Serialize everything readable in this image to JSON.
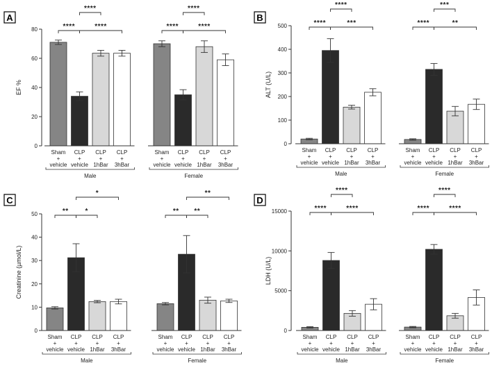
{
  "figure_title": "Multi-panel bar chart: EF, ALT, Creatinine and LDH by treatment group and sex",
  "colors": {
    "sham": "#858585",
    "clp_vehicle": "#2a2a2a",
    "clp_1bar": "#d8d8d8",
    "clp_3bar": "#ffffff",
    "outline": "#333333"
  },
  "chart_data": [
    {
      "panel": "A",
      "type": "bar",
      "ylabel": "EF %",
      "ylim": [
        0,
        80
      ],
      "yticks": [
        0,
        20,
        40,
        60,
        80
      ],
      "groups": [
        "Male",
        "Female"
      ],
      "categories": [
        {
          "top": "Sham",
          "mid": "+",
          "bottom": "vehicle"
        },
        {
          "top": "CLP",
          "mid": "+",
          "bottom": "vehicle"
        },
        {
          "top": "CLP",
          "mid": "+",
          "bottom": "1hBar"
        },
        {
          "top": "CLP",
          "mid": "+",
          "bottom": "3hBar"
        }
      ],
      "series": [
        {
          "name": "Male",
          "values": [
            71,
            34,
            63.5,
            63.5
          ],
          "errors": [
            1.5,
            3,
            2,
            2
          ]
        },
        {
          "name": "Female",
          "values": [
            70,
            35,
            68,
            59
          ],
          "errors": [
            2,
            3.5,
            4,
            4
          ]
        }
      ],
      "significance": [
        {
          "group": 0,
          "from": 0,
          "to": 1,
          "level": 1,
          "label": "****"
        },
        {
          "group": 0,
          "from": 1,
          "to": 2,
          "level": 2,
          "label": "****"
        },
        {
          "group": 0,
          "from": 1,
          "to": 3,
          "level": 1,
          "label": "****"
        },
        {
          "group": 1,
          "from": 0,
          "to": 1,
          "level": 1,
          "label": "****"
        },
        {
          "group": 1,
          "from": 1,
          "to": 2,
          "level": 2,
          "label": "****"
        },
        {
          "group": 1,
          "from": 1,
          "to": 3,
          "level": 1,
          "label": "****"
        }
      ]
    },
    {
      "panel": "B",
      "type": "bar",
      "ylabel": "ALT (U/L)",
      "ylim": [
        0,
        500
      ],
      "yticks": [
        0,
        100,
        200,
        300,
        400,
        500
      ],
      "groups": [
        "Male",
        "Female"
      ],
      "categories": [
        {
          "top": "Sham",
          "mid": "+",
          "bottom": "vehicle"
        },
        {
          "top": "CLP",
          "mid": "+",
          "bottom": "vehicle"
        },
        {
          "top": "CLP",
          "mid": "+",
          "bottom": "1hBar"
        },
        {
          "top": "CLP",
          "mid": "+",
          "bottom": "3hBar"
        }
      ],
      "series": [
        {
          "name": "Male",
          "values": [
            20,
            395,
            155,
            218
          ],
          "errors": [
            3,
            50,
            8,
            15
          ]
        },
        {
          "name": "Female",
          "values": [
            18,
            315,
            138,
            167
          ],
          "errors": [
            3,
            25,
            20,
            22
          ]
        }
      ],
      "significance": [
        {
          "group": 0,
          "from": 0,
          "to": 1,
          "level": 1,
          "label": "****"
        },
        {
          "group": 0,
          "from": 1,
          "to": 2,
          "level": 2,
          "label": "****"
        },
        {
          "group": 0,
          "from": 1,
          "to": 3,
          "level": 1,
          "label": "***"
        },
        {
          "group": 1,
          "from": 0,
          "to": 1,
          "level": 1,
          "label": "****"
        },
        {
          "group": 1,
          "from": 1,
          "to": 2,
          "level": 2,
          "label": "***"
        },
        {
          "group": 1,
          "from": 1,
          "to": 3,
          "level": 1,
          "label": "**"
        }
      ]
    },
    {
      "panel": "C",
      "type": "bar",
      "ylabel": "Creatinine (µmol/L)",
      "ylim": [
        0,
        50
      ],
      "yticks": [
        0,
        10,
        20,
        30,
        40,
        50
      ],
      "groups": [
        "Male",
        "Female"
      ],
      "categories": [
        {
          "top": "Sham",
          "mid": "+",
          "bottom": "vehicle"
        },
        {
          "top": "CLP",
          "mid": "+",
          "bottom": "vehicle"
        },
        {
          "top": "CLP",
          "mid": "+",
          "bottom": "1hBar"
        },
        {
          "top": "CLP",
          "mid": "+",
          "bottom": "3hBar"
        }
      ],
      "series": [
        {
          "name": "Male",
          "values": [
            9.7,
            31.2,
            12.4,
            12.4
          ],
          "errors": [
            0.5,
            6,
            0.5,
            1
          ]
        },
        {
          "name": "Female",
          "values": [
            11.5,
            32.7,
            13,
            12.7
          ],
          "errors": [
            0.5,
            8,
            1.3,
            0.7
          ]
        }
      ],
      "significance": [
        {
          "group": 0,
          "from": 0,
          "to": 1,
          "level": 1,
          "label": "**"
        },
        {
          "group": 0,
          "from": 1,
          "to": 2,
          "level": 1,
          "label": "*"
        },
        {
          "group": 0,
          "from": 1,
          "to": 3,
          "level": 2,
          "label": "*"
        },
        {
          "group": 1,
          "from": 0,
          "to": 1,
          "level": 1,
          "label": "**"
        },
        {
          "group": 1,
          "from": 1,
          "to": 2,
          "level": 1,
          "label": "**"
        },
        {
          "group": 1,
          "from": 1,
          "to": 3,
          "level": 2,
          "label": "**"
        }
      ]
    },
    {
      "panel": "D",
      "type": "bar",
      "ylabel": "LDH (U/L)",
      "ylim": [
        0,
        15000
      ],
      "yticks": [
        0,
        5000,
        10000,
        15000
      ],
      "groups": [
        "Male",
        "Female"
      ],
      "categories": [
        {
          "top": "Sham",
          "mid": "+",
          "bottom": "vehicle"
        },
        {
          "top": "CLP",
          "mid": "+",
          "bottom": "vehicle"
        },
        {
          "top": "CLP",
          "mid": "+",
          "bottom": "1hBar"
        },
        {
          "top": "CLP",
          "mid": "+",
          "bottom": "3hBar"
        }
      ],
      "series": [
        {
          "name": "Male",
          "values": [
            400,
            8800,
            2150,
            3300
          ],
          "errors": [
            80,
            1000,
            350,
            700
          ]
        },
        {
          "name": "Female",
          "values": [
            430,
            10200,
            1850,
            4150
          ],
          "errors": [
            80,
            600,
            300,
            950
          ]
        }
      ],
      "significance": [
        {
          "group": 0,
          "from": 0,
          "to": 1,
          "level": 1,
          "label": "****"
        },
        {
          "group": 0,
          "from": 1,
          "to": 2,
          "level": 2,
          "label": "****"
        },
        {
          "group": 0,
          "from": 1,
          "to": 3,
          "level": 1,
          "label": "****"
        },
        {
          "group": 1,
          "from": 0,
          "to": 1,
          "level": 1,
          "label": "****"
        },
        {
          "group": 1,
          "from": 1,
          "to": 2,
          "level": 2,
          "label": "****"
        },
        {
          "group": 1,
          "from": 1,
          "to": 3,
          "level": 1,
          "label": "****"
        }
      ]
    }
  ]
}
